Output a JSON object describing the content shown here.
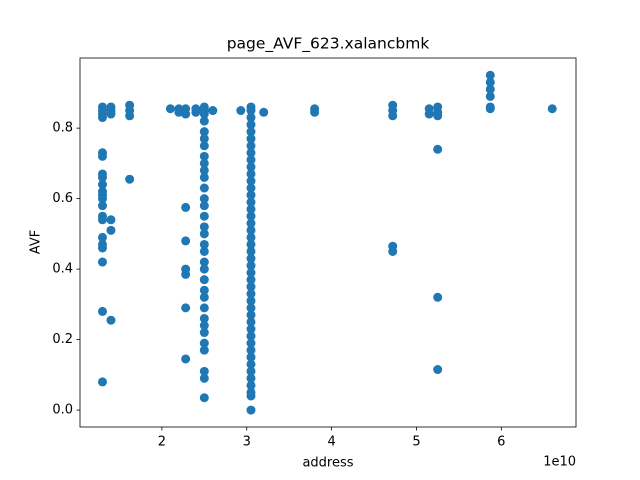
{
  "chart_data": {
    "type": "scatter",
    "title": "page_AVF_623.xalancbmk",
    "x_label": "address",
    "y_label": "AVF",
    "x_offset_label": "1e10",
    "color": "#1f77b4",
    "xlim": [
      1.035,
      6.88
    ],
    "ylim": [
      -0.048,
      0.999
    ],
    "xticks": [
      2,
      3,
      4,
      5,
      6
    ],
    "yticks": [
      {
        "value": 0,
        "label": "0.0"
      },
      0.2,
      0.4,
      0.6,
      0.8
    ],
    "x": [
      1.3,
      1.3,
      1.3,
      1.3,
      1.3,
      1.3,
      1.3,
      1.3,
      1.3,
      1.3,
      1.3,
      1.3,
      1.3,
      1.3,
      1.3,
      1.3,
      1.3,
      1.3,
      1.3,
      1.3,
      1.3,
      1.4,
      1.4,
      1.4,
      1.4,
      1.4,
      1.4,
      1.62,
      1.62,
      1.62,
      1.62,
      2.1,
      2.2,
      2.2,
      2.28,
      2.28,
      2.28,
      2.28,
      2.28,
      2.28,
      2.28,
      2.28,
      2.4,
      2.4,
      2.5,
      2.5,
      2.5,
      2.5,
      2.5,
      2.5,
      2.5,
      2.5,
      2.5,
      2.5,
      2.5,
      2.5,
      2.5,
      2.5,
      2.5,
      2.5,
      2.5,
      2.5,
      2.5,
      2.5,
      2.5,
      2.5,
      2.5,
      2.5,
      2.5,
      2.5,
      2.5,
      2.5,
      2.5,
      2.5,
      2.5,
      2.5,
      2.5,
      2.6,
      2.93,
      3.05,
      3.05,
      3.05,
      3.05,
      3.05,
      3.05,
      3.05,
      3.05,
      3.05,
      3.05,
      3.05,
      3.05,
      3.05,
      3.05,
      3.05,
      3.05,
      3.05,
      3.05,
      3.05,
      3.05,
      3.05,
      3.05,
      3.05,
      3.05,
      3.05,
      3.05,
      3.05,
      3.05,
      3.05,
      3.05,
      3.05,
      3.05,
      3.05,
      3.05,
      3.05,
      3.05,
      3.05,
      3.05,
      3.05,
      3.05,
      3.05,
      3.05,
      3.05,
      3.05,
      3.2,
      3.8,
      3.8,
      4.72,
      4.72,
      4.72,
      4.72,
      4.72,
      5.15,
      5.15,
      5.25,
      5.25,
      5.25,
      5.25,
      5.25,
      5.25,
      5.87,
      5.87,
      5.87,
      5.87,
      5.87,
      5.87,
      6.6
    ],
    "values": [
      0.86,
      0.85,
      0.84,
      0.83,
      0.73,
      0.72,
      0.67,
      0.66,
      0.64,
      0.62,
      0.61,
      0.6,
      0.58,
      0.55,
      0.54,
      0.49,
      0.47,
      0.46,
      0.42,
      0.28,
      0.08,
      0.86,
      0.85,
      0.84,
      0.54,
      0.51,
      0.255,
      0.865,
      0.85,
      0.835,
      0.655,
      0.855,
      0.855,
      0.845,
      0.855,
      0.84,
      0.575,
      0.48,
      0.4,
      0.385,
      0.29,
      0.145,
      0.855,
      0.845,
      0.86,
      0.85,
      0.84,
      0.82,
      0.79,
      0.77,
      0.75,
      0.72,
      0.7,
      0.68,
      0.66,
      0.63,
      0.6,
      0.58,
      0.55,
      0.52,
      0.5,
      0.47,
      0.45,
      0.42,
      0.4,
      0.37,
      0.34,
      0.32,
      0.29,
      0.26,
      0.24,
      0.22,
      0.19,
      0.17,
      0.11,
      0.09,
      0.035,
      0.85,
      0.85,
      0,
      0.04,
      0.05,
      0.07,
      0.09,
      0.11,
      0.13,
      0.15,
      0.17,
      0.19,
      0.21,
      0.23,
      0.25,
      0.27,
      0.29,
      0.31,
      0.33,
      0.35,
      0.37,
      0.39,
      0.41,
      0.43,
      0.45,
      0.47,
      0.49,
      0.51,
      0.53,
      0.55,
      0.57,
      0.59,
      0.61,
      0.63,
      0.65,
      0.67,
      0.69,
      0.71,
      0.73,
      0.75,
      0.77,
      0.79,
      0.81,
      0.83,
      0.85,
      0.86,
      0.845,
      0.855,
      0.845,
      0.865,
      0.85,
      0.835,
      0.465,
      0.45,
      0.855,
      0.84,
      0.86,
      0.845,
      0.835,
      0.74,
      0.32,
      0.115,
      0.95,
      0.93,
      0.91,
      0.89,
      0.86,
      0.855,
      0.855
    ]
  }
}
